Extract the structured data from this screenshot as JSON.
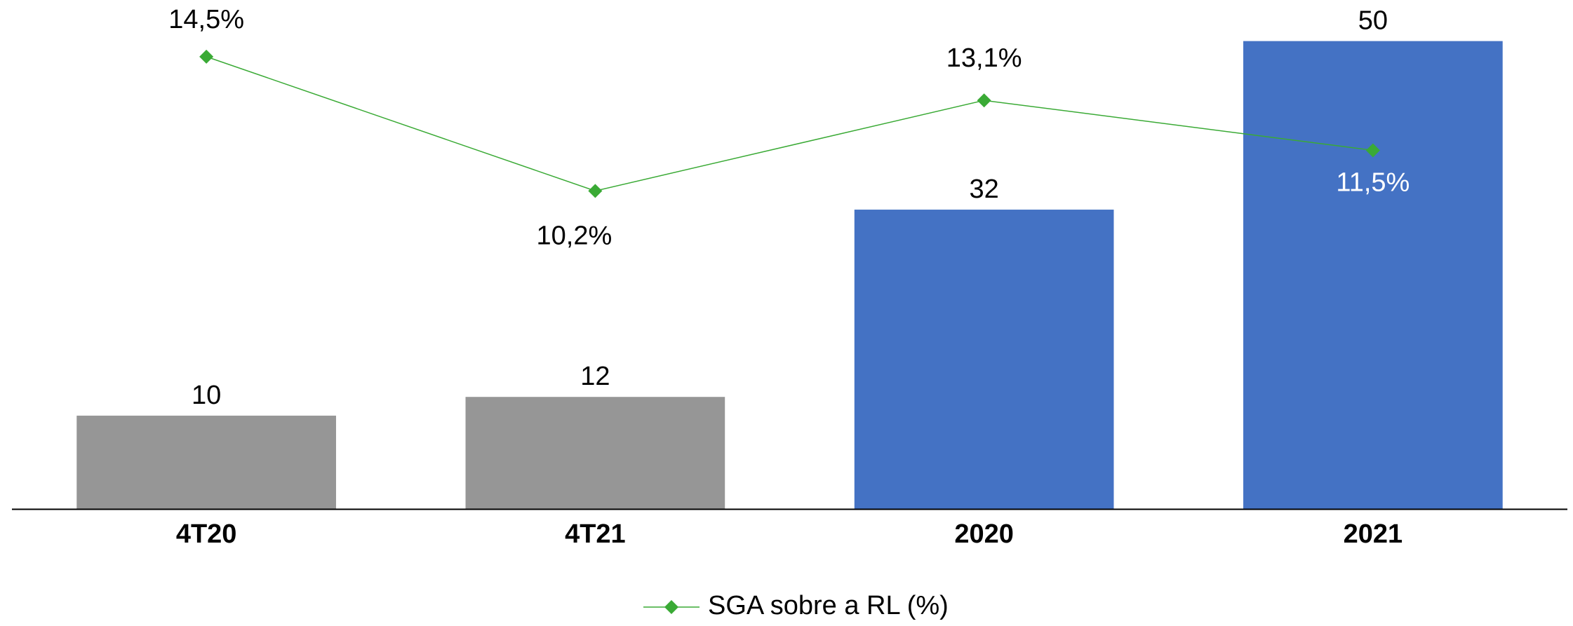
{
  "chart_data": {
    "type": "bar-line",
    "categories": [
      "4T20",
      "4T21",
      "2020",
      "2021"
    ],
    "series": [
      {
        "type": "bar",
        "values": [
          10,
          12,
          32,
          50
        ],
        "colors": [
          "#969696",
          "#969696",
          "#4472c4",
          "#4472c4"
        ]
      },
      {
        "type": "line",
        "name": "SGA sobre a RL (%)",
        "color": "#3aaa35",
        "axis": "y2",
        "values": [
          14.5,
          10.2,
          13.1,
          11.5
        ],
        "value_labels": [
          "14,5%",
          "10,2%",
          "13,1%",
          "11,5%"
        ]
      }
    ],
    "ylim": [
      0,
      50
    ],
    "y2lim": [
      0,
      15
    ],
    "legend": "bottom"
  }
}
